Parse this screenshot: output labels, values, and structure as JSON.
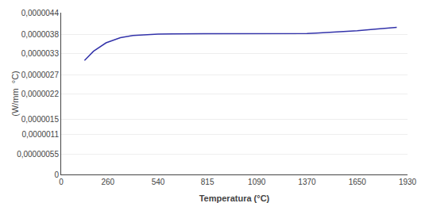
{
  "chart_data": {
    "type": "line",
    "xlabel": "Temperatura (°C)",
    "ylabel": "(W/mm  °C)",
    "x": [
      130,
      180,
      250,
      330,
      400,
      480,
      540,
      620,
      700,
      800,
      900,
      1000,
      1100,
      1200,
      1300,
      1370,
      1420,
      1500,
      1580,
      1650,
      1750,
      1870
    ],
    "values": [
      3.1e-06,
      3.35e-06,
      3.58e-06,
      3.72e-06,
      3.78e-06,
      3.81e-06,
      3.82e-06,
      3.825e-06,
      3.825e-06,
      3.825e-06,
      3.82e-06,
      3.82e-06,
      3.82e-06,
      3.82e-06,
      3.82e-06,
      3.835e-06,
      3.845e-06,
      3.865e-06,
      3.89e-06,
      3.91e-06,
      3.95e-06,
      4e-06
    ],
    "color": "#3333aa",
    "xlim": [
      0,
      1930
    ],
    "ylim": [
      0,
      4.4e-06
    ],
    "xticks": [
      0,
      260,
      540,
      815,
      1090,
      1370,
      1650,
      1930
    ],
    "yticks": [
      0,
      {
        "value": 5.5e-07,
        "label": "0,00000055"
      },
      {
        "value": 1.1e-06,
        "label": "0,0000011"
      },
      {
        "value": 1.5e-06,
        "label": "0,0000015"
      },
      {
        "value": 2.2e-06,
        "label": "0,0000022"
      },
      {
        "value": 2.7e-06,
        "label": "0,0000027"
      },
      {
        "value": 3.3e-06,
        "label": "0,0000033"
      },
      {
        "value": 3.8e-06,
        "label": "0,0000038"
      },
      {
        "value": 4.4e-06,
        "label": "0,0000044"
      }
    ],
    "grid": "y"
  }
}
